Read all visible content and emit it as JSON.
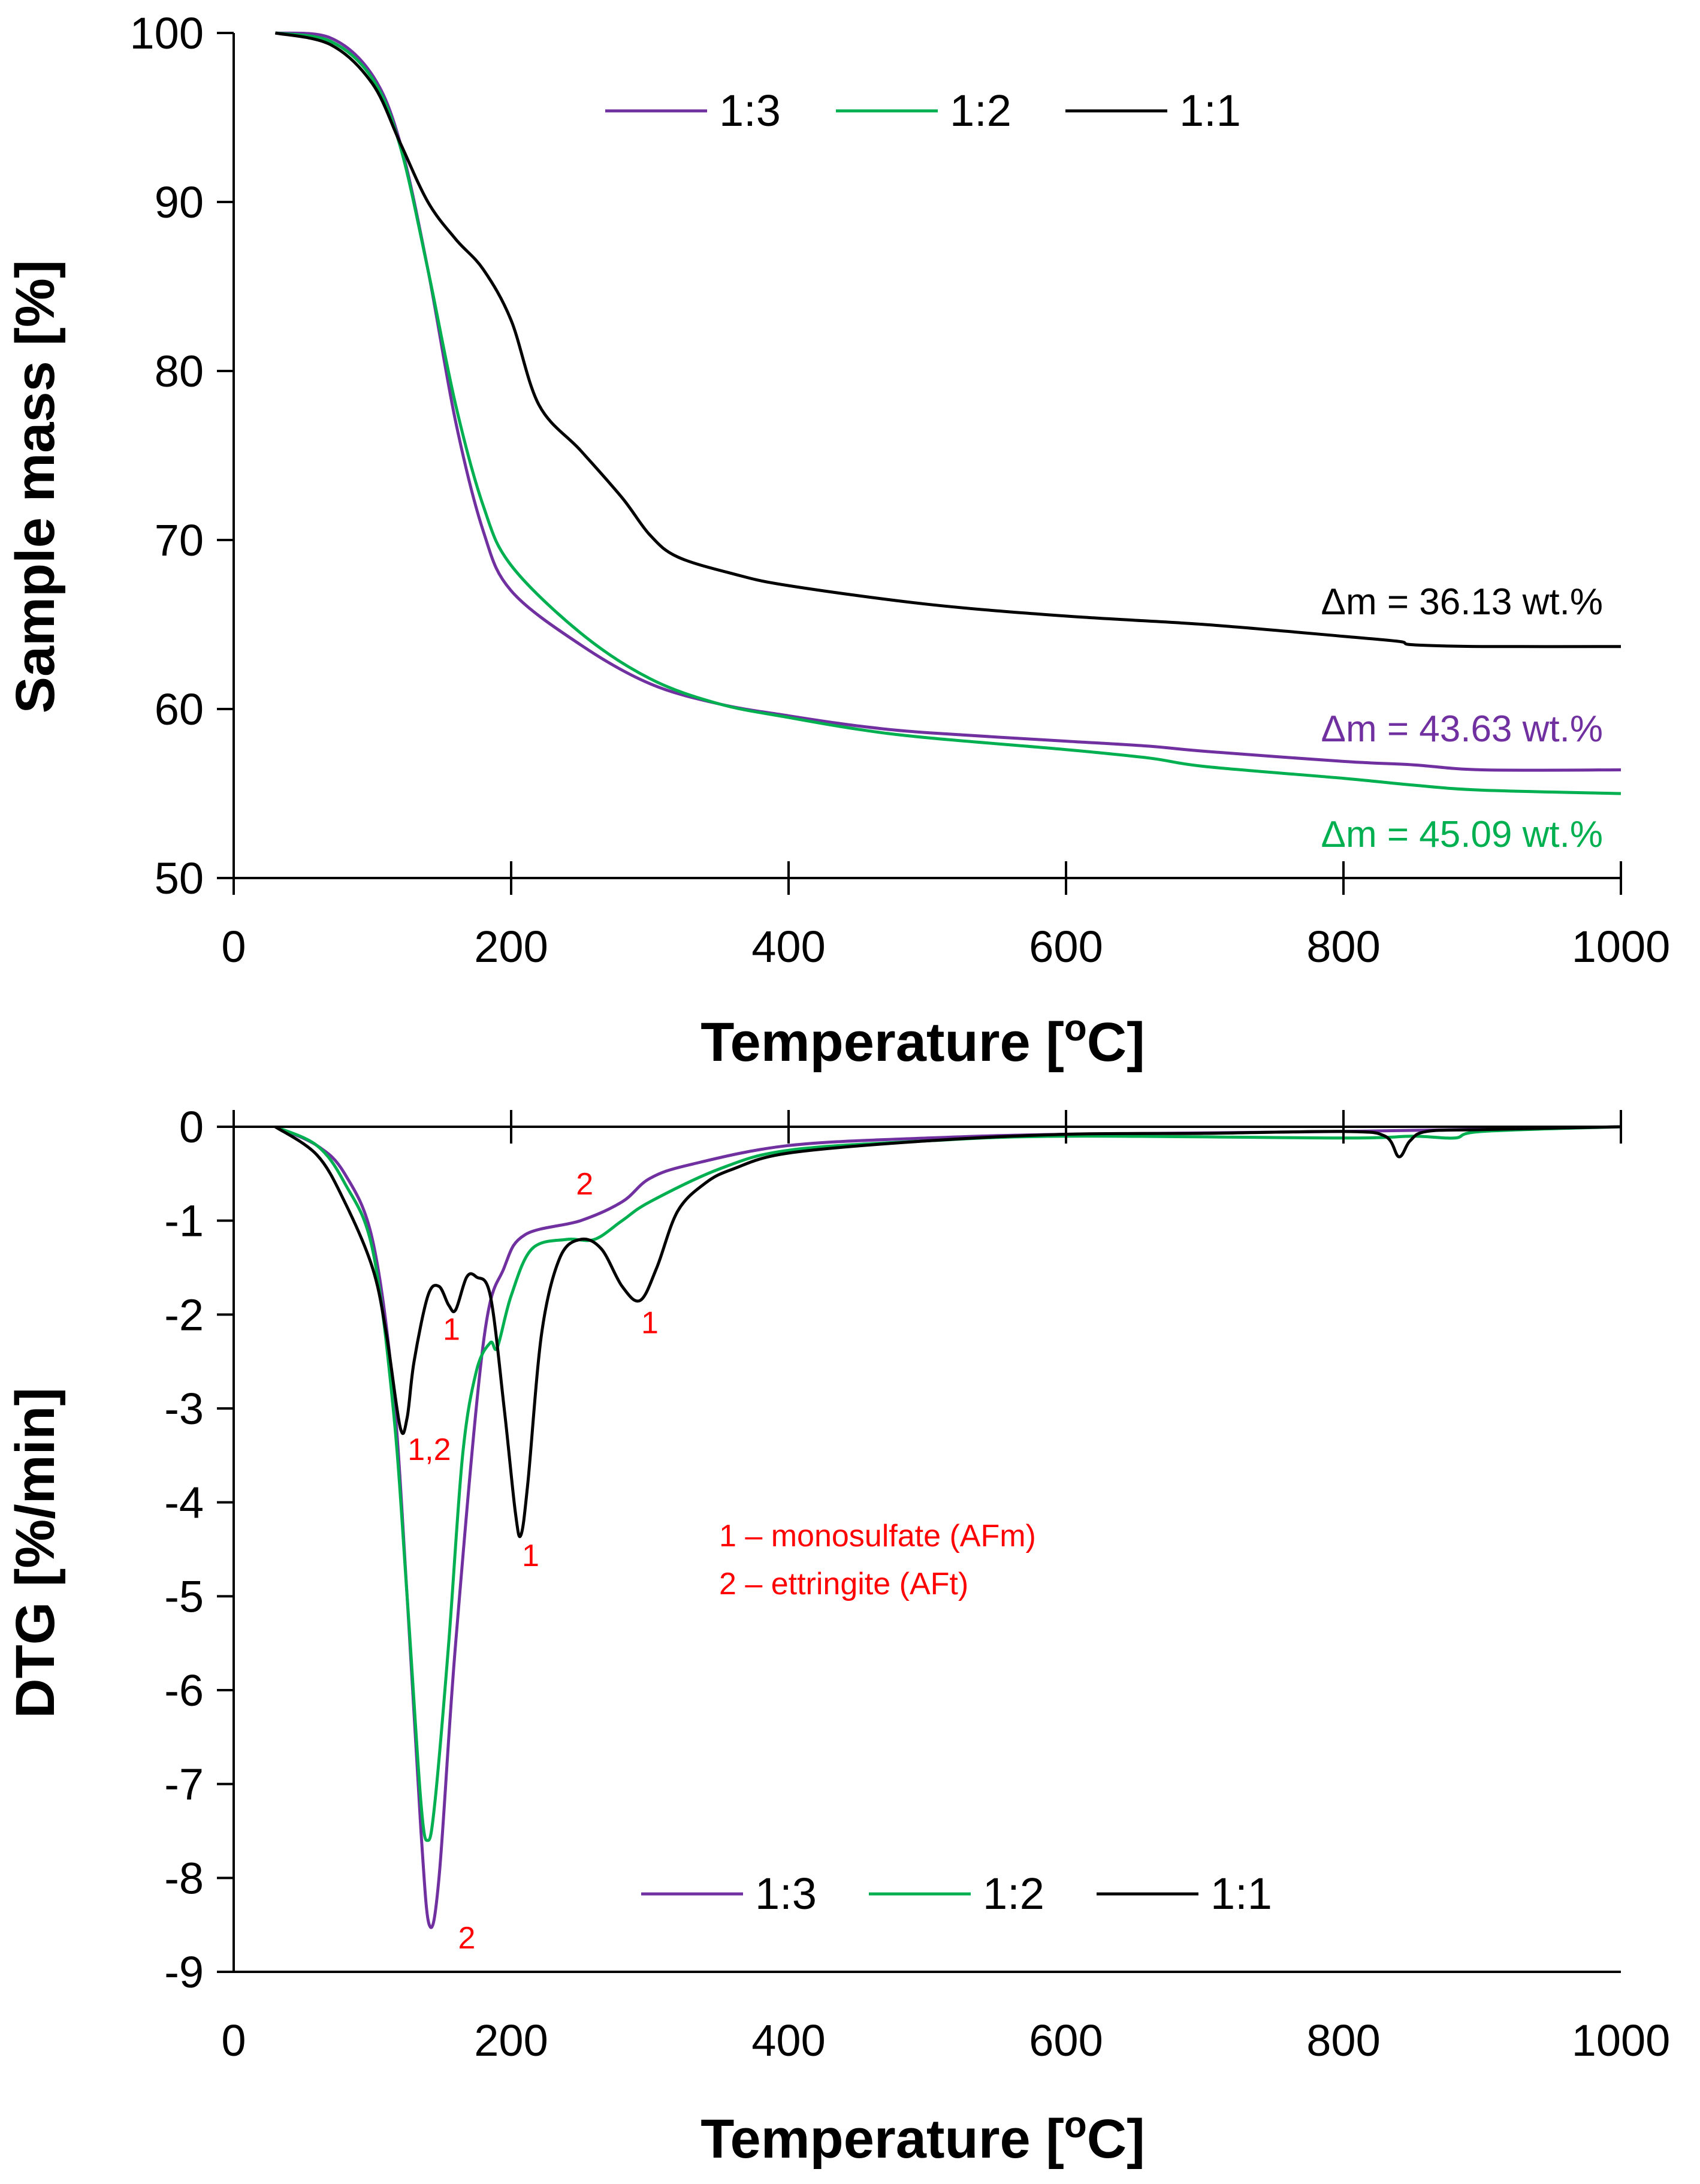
{
  "chart_data": [
    {
      "type": "line",
      "id": "tg",
      "title": "",
      "xlabel": "Temperature [",
      "xlabel_sup": "o",
      "xlabel_tail": "C]",
      "ylabel": "Sample mass [%]",
      "xlim": [
        0,
        1000
      ],
      "ylim": [
        50,
        100
      ],
      "xticks": [
        0,
        200,
        400,
        600,
        800,
        1000
      ],
      "yticks": [
        50,
        60,
        70,
        80,
        90,
        100
      ],
      "legend": [
        "1:3",
        "1:2",
        "1:1"
      ],
      "legend_position": "top-center",
      "series": [
        {
          "name": "1:3",
          "color": "#7030a0",
          "points": [
            [
              30,
              100
            ],
            [
              70,
              99.7
            ],
            [
              100,
              97.5
            ],
            [
              120,
              93.5
            ],
            [
              140,
              86
            ],
            [
              160,
              77
            ],
            [
              180,
              70.5
            ],
            [
              200,
              67
            ],
            [
              250,
              63.8
            ],
            [
              300,
              61.5
            ],
            [
              350,
              60.3
            ],
            [
              400,
              59.6
            ],
            [
              450,
              59
            ],
            [
              500,
              58.6
            ],
            [
              600,
              58.1
            ],
            [
              660,
              57.8
            ],
            [
              700,
              57.5
            ],
            [
              800,
              56.9
            ],
            [
              850,
              56.7
            ],
            [
              900,
              56.4
            ],
            [
              1000,
              56.4
            ]
          ],
          "annotation": "Δm = 43.63 wt.%"
        },
        {
          "name": "1:2",
          "color": "#00b050",
          "points": [
            [
              30,
              100
            ],
            [
              70,
              99.5
            ],
            [
              100,
              97.3
            ],
            [
              120,
              93.3
            ],
            [
              140,
              86
            ],
            [
              160,
              78
            ],
            [
              180,
              72
            ],
            [
              200,
              68.5
            ],
            [
              250,
              64.5
            ],
            [
              300,
              61.8
            ],
            [
              350,
              60.3
            ],
            [
              400,
              59.5
            ],
            [
              450,
              58.8
            ],
            [
              500,
              58.3
            ],
            [
              600,
              57.6
            ],
            [
              660,
              57.1
            ],
            [
              700,
              56.6
            ],
            [
              800,
              55.9
            ],
            [
              850,
              55.5
            ],
            [
              900,
              55.2
            ],
            [
              1000,
              55
            ]
          ],
          "annotation": "Δm = 45.09 wt.%"
        },
        {
          "name": "1:1",
          "color": "#000000",
          "points": [
            [
              30,
              100
            ],
            [
              70,
              99.3
            ],
            [
              100,
              97
            ],
            [
              120,
              93.5
            ],
            [
              140,
              90
            ],
            [
              160,
              87.8
            ],
            [
              180,
              86
            ],
            [
              200,
              83
            ],
            [
              220,
              78
            ],
            [
              250,
              75.3
            ],
            [
              280,
              72.5
            ],
            [
              300,
              70.3
            ],
            [
              320,
              69
            ],
            [
              360,
              68
            ],
            [
              400,
              67.3
            ],
            [
              500,
              66.2
            ],
            [
              600,
              65.5
            ],
            [
              700,
              65
            ],
            [
              800,
              64.3
            ],
            [
              840,
              64
            ],
            [
              850,
              63.8
            ],
            [
              900,
              63.7
            ],
            [
              1000,
              63.7
            ]
          ],
          "annotation": "Δm = 36.13 wt.%"
        }
      ]
    },
    {
      "type": "line",
      "id": "dtg",
      "title": "",
      "xlabel": "Temperature [",
      "xlabel_sup": "o",
      "xlabel_tail": "C]",
      "ylabel": "DTG [%/min]",
      "xlim": [
        0,
        1000
      ],
      "ylim": [
        -9,
        0
      ],
      "xticks": [
        0,
        200,
        400,
        600,
        800,
        1000
      ],
      "yticks": [
        0,
        -1,
        -2,
        -3,
        -4,
        -5,
        -6,
        -7,
        -8,
        -9
      ],
      "legend": [
        "1:3",
        "1:2",
        "1:1"
      ],
      "legend_position": "bottom-center",
      "series": [
        {
          "name": "1:3",
          "color": "#7030a0",
          "points": [
            [
              30,
              0
            ],
            [
              60,
              -0.2
            ],
            [
              80,
              -0.5
            ],
            [
              100,
              -1.2
            ],
            [
              115,
              -2.8
            ],
            [
              125,
              -5
            ],
            [
              135,
              -7.5
            ],
            [
              141,
              -8.5
            ],
            [
              148,
              -8
            ],
            [
              160,
              -5.5
            ],
            [
              180,
              -2.3
            ],
            [
              195,
              -1.5
            ],
            [
              210,
              -1.15
            ],
            [
              250,
              -1
            ],
            [
              280,
              -0.8
            ],
            [
              300,
              -0.55
            ],
            [
              330,
              -0.4
            ],
            [
              400,
              -0.2
            ],
            [
              500,
              -0.12
            ],
            [
              600,
              -0.08
            ],
            [
              800,
              -0.05
            ],
            [
              1000,
              0
            ]
          ]
        },
        {
          "name": "1:2",
          "color": "#00b050",
          "points": [
            [
              30,
              0
            ],
            [
              60,
              -0.2
            ],
            [
              80,
              -0.6
            ],
            [
              100,
              -1.3
            ],
            [
              115,
              -3
            ],
            [
              125,
              -5
            ],
            [
              135,
              -7.2
            ],
            [
              140,
              -7.6
            ],
            [
              145,
              -7.2
            ],
            [
              155,
              -5.5
            ],
            [
              165,
              -3.5
            ],
            [
              175,
              -2.6
            ],
            [
              185,
              -2.3
            ],
            [
              190,
              -2.35
            ],
            [
              200,
              -1.8
            ],
            [
              215,
              -1.3
            ],
            [
              240,
              -1.2
            ],
            [
              260,
              -1.2
            ],
            [
              280,
              -1
            ],
            [
              300,
              -0.8
            ],
            [
              350,
              -0.45
            ],
            [
              400,
              -0.25
            ],
            [
              500,
              -0.15
            ],
            [
              600,
              -0.1
            ],
            [
              800,
              -0.12
            ],
            [
              850,
              -0.1
            ],
            [
              880,
              -0.12
            ],
            [
              900,
              -0.05
            ],
            [
              1000,
              0
            ]
          ]
        },
        {
          "name": "1:1",
          "color": "#000000",
          "points": [
            [
              30,
              0
            ],
            [
              60,
              -0.3
            ],
            [
              80,
              -0.8
            ],
            [
              100,
              -1.5
            ],
            [
              110,
              -2.2
            ],
            [
              120,
              -3.2
            ],
            [
              125,
              -3.1
            ],
            [
              130,
              -2.5
            ],
            [
              140,
              -1.8
            ],
            [
              148,
              -1.7
            ],
            [
              155,
              -1.9
            ],
            [
              160,
              -1.95
            ],
            [
              168,
              -1.6
            ],
            [
              175,
              -1.6
            ],
            [
              185,
              -1.8
            ],
            [
              195,
              -3
            ],
            [
              203,
              -4.1
            ],
            [
              207,
              -4.35
            ],
            [
              212,
              -3.8
            ],
            [
              222,
              -2.2
            ],
            [
              235,
              -1.4
            ],
            [
              250,
              -1.2
            ],
            [
              265,
              -1.3
            ],
            [
              280,
              -1.7
            ],
            [
              293,
              -1.85
            ],
            [
              305,
              -1.5
            ],
            [
              320,
              -0.9
            ],
            [
              340,
              -0.6
            ],
            [
              360,
              -0.45
            ],
            [
              400,
              -0.28
            ],
            [
              500,
              -0.15
            ],
            [
              600,
              -0.08
            ],
            [
              700,
              -0.07
            ],
            [
              800,
              -0.05
            ],
            [
              830,
              -0.1
            ],
            [
              840,
              -0.32
            ],
            [
              848,
              -0.15
            ],
            [
              860,
              -0.05
            ],
            [
              900,
              -0.03
            ],
            [
              1000,
              0
            ]
          ]
        }
      ],
      "peak_labels": [
        {
          "text": "1,2",
          "x": 141,
          "y": -3.55
        },
        {
          "text": "1",
          "x": 157,
          "y": -2.27
        },
        {
          "text": "1",
          "x": 214,
          "y": -4.68
        },
        {
          "text": "2",
          "x": 253,
          "y": -0.72
        },
        {
          "text": "1",
          "x": 300,
          "y": -2.2
        },
        {
          "text": "2",
          "x": 168,
          "y": -8.75
        }
      ],
      "legend_note": [
        "1 – monosulfate (AFm)",
        "2 – ettringite (AFt)"
      ]
    }
  ]
}
